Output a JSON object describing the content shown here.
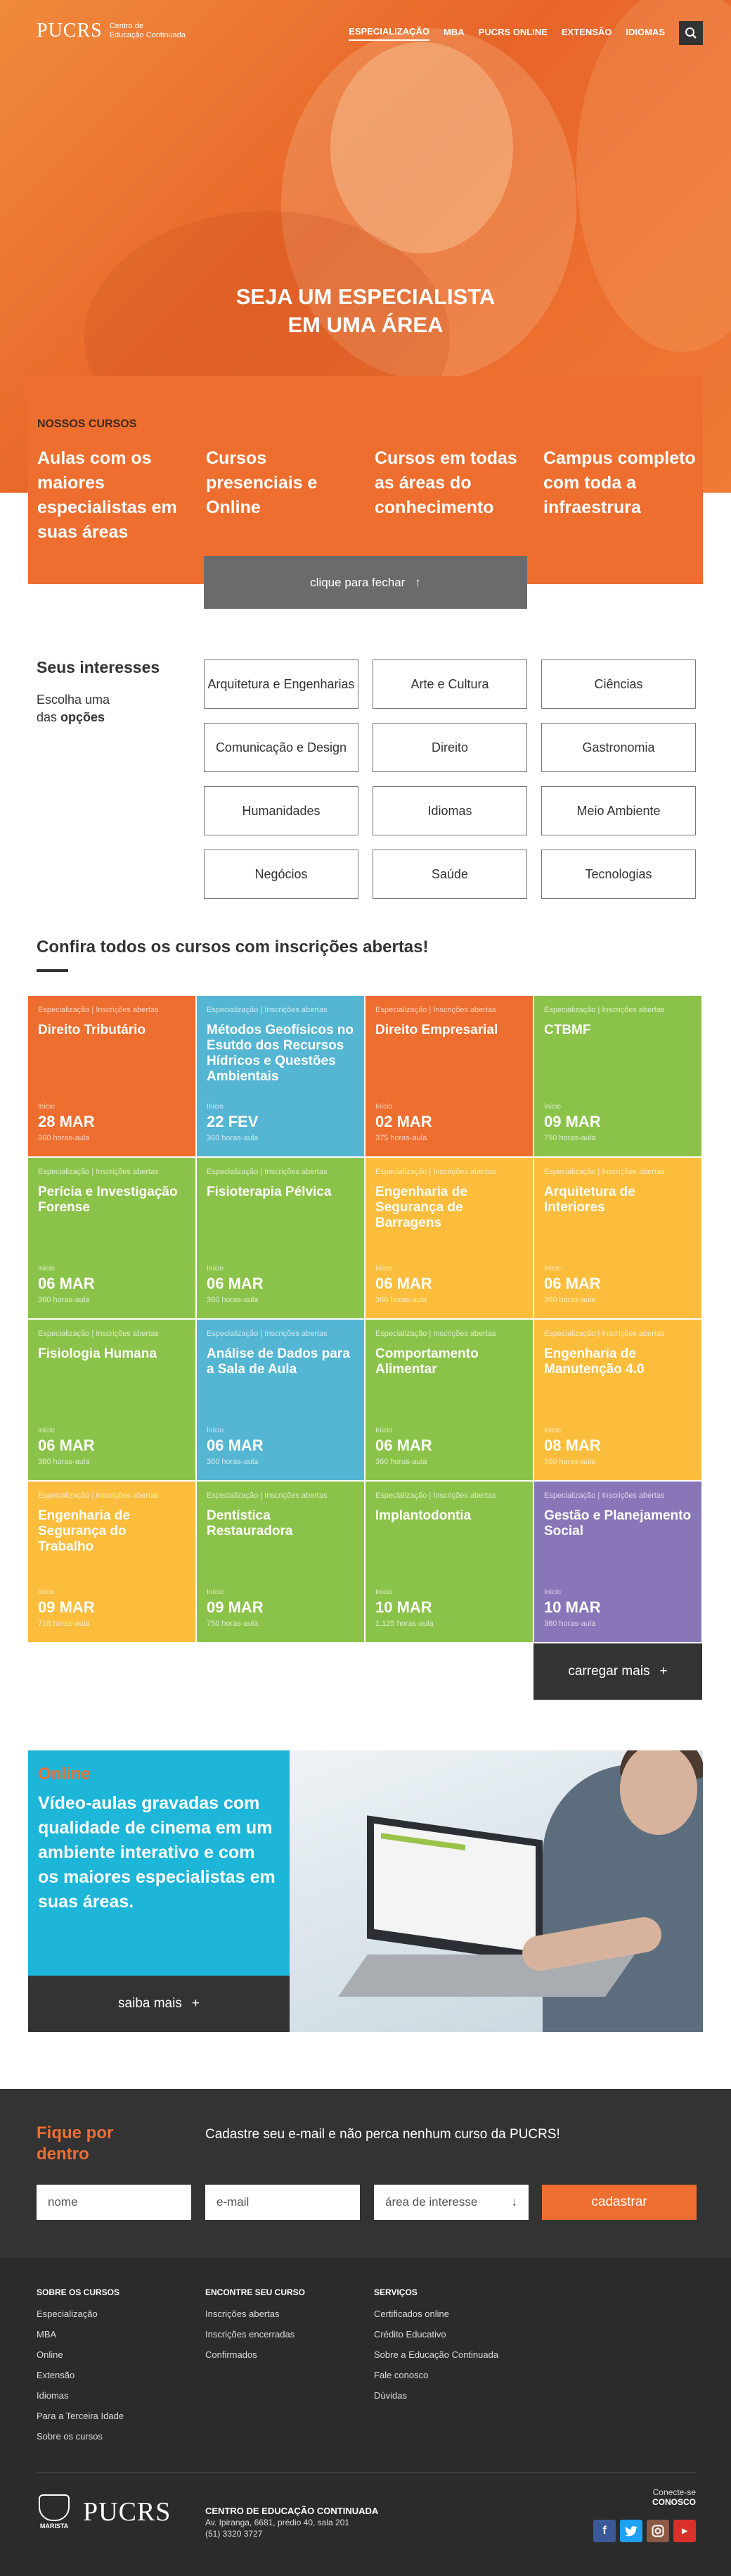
{
  "header": {
    "logo_main": "PUCRS",
    "logo_sub_1": "Centro de",
    "logo_sub_2": "Educação Continuada",
    "nav": [
      "ESPECIALIZAÇÃO",
      "MBA",
      "PUCRS ONLINE",
      "EXTENSÃO",
      "IDIOMAS"
    ],
    "search_icon": "search-icon"
  },
  "hero": {
    "title_line1": "SEJA UM ESPECIALISTA",
    "title_line2": "EM UMA ÁREA"
  },
  "cursos": {
    "label": "NOSSOS CURSOS",
    "items": [
      "Aulas com os maiores especialistas em suas áreas",
      "Cursos presenciais e Online",
      "Cursos em todas as áreas do conhecimento",
      "Campus completo com toda a infraestrura"
    ],
    "close_label": "clique para fechar",
    "close_icon": "↑"
  },
  "interesses": {
    "title": "Seus interesses",
    "sub_line1": "Escolha uma",
    "sub_prefix": "das",
    "sub_bold": "opções",
    "options": [
      "Arquitetura e Engenharias",
      "Arte e Cultura",
      "Ciências",
      "Comunicação e Design",
      "Direito",
      "Gastronomia",
      "Humanidades",
      "Idiomas",
      "Meio Ambiente",
      "Negócios",
      "Saúde",
      "Tecnologias"
    ]
  },
  "confira": {
    "title": "Confira todos os cursos com inscrições abertas!",
    "category": "Especialização | Inscrições abertas",
    "inicio": "Início",
    "courses": [
      {
        "name": "Direito Tributário",
        "date": "28 MAR",
        "hours": "360 horas-aula",
        "color": "#ee6e2f"
      },
      {
        "name": "Métodos Geofísicos no Esutdo dos Recursos Hídricos e Questões Ambientais",
        "date": "22 FEV",
        "hours": "360 horas-aula",
        "color": "#54b6d2"
      },
      {
        "name": "Direito Empresarial",
        "date": "02 MAR",
        "hours": "375 horas-aula",
        "color": "#ee6e2f"
      },
      {
        "name": "CTBMF",
        "date": "09 MAR",
        "hours": "750 horas-aula",
        "color": "#8bc34a"
      },
      {
        "name": "Perícia e Investigação Forense",
        "date": "06 MAR",
        "hours": "360 horas-aula",
        "color": "#8bc34a"
      },
      {
        "name": "Fisioterapia Pélvica",
        "date": "06 MAR",
        "hours": "360 horas-aula",
        "color": "#8bc34a"
      },
      {
        "name": "Engenharia de Segurança de Barragens",
        "date": "06 MAR",
        "hours": "360 horas-aula",
        "color": "#fbbd3b"
      },
      {
        "name": "Arquitetura de Interiores",
        "date": "06 MAR",
        "hours": "360 horas-aula",
        "color": "#fbbd3b"
      },
      {
        "name": "Fisiologia Humana",
        "date": "06 MAR",
        "hours": "360 horas-aula",
        "color": "#8bc34a"
      },
      {
        "name": "Análise de Dados para a Sala de Aula",
        "date": "06 MAR",
        "hours": "360 horas-aula",
        "color": "#54b6d2"
      },
      {
        "name": "Comportamento Alimentar",
        "date": "06 MAR",
        "hours": "360 horas-aula",
        "color": "#8bc34a"
      },
      {
        "name": "Engenharia de Manutenção 4.0",
        "date": "08 MAR",
        "hours": "360 horas-aula",
        "color": "#fbbd3b"
      },
      {
        "name": "Engenharia de Segurança do Trabalho",
        "date": "09 MAR",
        "hours": "728 horas-aula",
        "color": "#fbbd3b"
      },
      {
        "name": "Dentística Restauradora",
        "date": "09 MAR",
        "hours": "750 horas-aula",
        "color": "#8bc34a"
      },
      {
        "name": "Implantodontia",
        "date": "10 MAR",
        "hours": "1.125 horas-aula",
        "color": "#8bc34a"
      },
      {
        "name": "Gestão e Planejamento Social",
        "date": "10 MAR",
        "hours": "360 horas-aula",
        "color": "#8876b8"
      }
    ],
    "load_more": "carregar mais",
    "plus": "+"
  },
  "online": {
    "tag": "Online",
    "text": "Vídeo-aulas gravadas com qualidade de cinema em um ambiente interativo e com os maiores especialistas em suas áreas.",
    "saiba": "saiba mais",
    "plus": "+"
  },
  "newsletter": {
    "title_line1": "Fique por",
    "title_line2": "dentro",
    "desc": "Cadastre seu e-mail e não perca nenhum curso da PUCRS!",
    "name_placeholder": "nome",
    "email_placeholder": "e-mail",
    "area_label": "área de interesse",
    "area_arrow": "↓",
    "submit": "cadastrar"
  },
  "footer": {
    "col1_title": "SOBRE OS CURSOS",
    "col1": [
      "Especialização",
      "MBA",
      "Online",
      "Extensão",
      "Idiomas",
      "Para a Terceira Idade",
      "Sobre os cursos"
    ],
    "col2_title": "ENCONTRE SEU CURSO",
    "col2": [
      "Inscrições abertas",
      "Inscrições encerradas",
      "Confirmados"
    ],
    "col3_title": "SERVIÇOS",
    "col3": [
      "Certificados online",
      "Crédito Educativo",
      "Sobre a Educação Continuada",
      "Fale conosco",
      "Dúvidas"
    ],
    "marista": "MARISTA",
    "logo": "PUCRS",
    "center_name": "CENTRO DE EDUCAÇÃO CONTINUADA",
    "address": "Av. Ipiranga, 6681, prédio 40, sala 201",
    "phone": "(51) 3320 3727",
    "connect_line1": "Conecte-se",
    "connect_line2": "CONOSCO",
    "social_colors": {
      "facebook": "#3b5998",
      "twitter": "#1da1f2",
      "instagram": "#8a5a44",
      "youtube": "#d9302b"
    }
  }
}
